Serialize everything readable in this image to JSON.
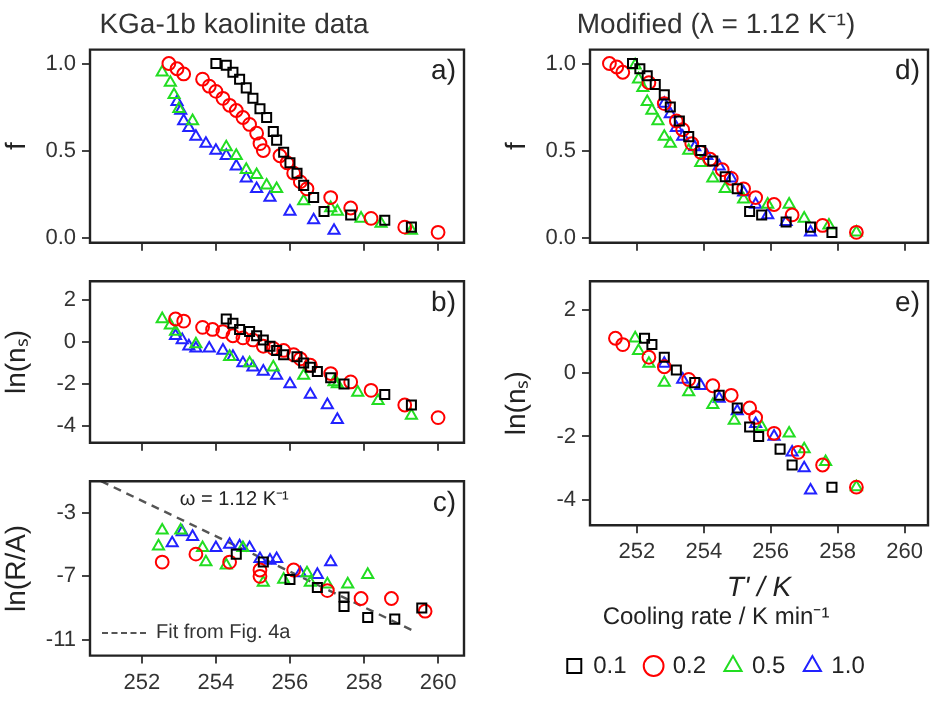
{
  "chart_data": [
    {
      "type": "scatter",
      "title": "KGa-1b kaolinite data",
      "ylabel": "f",
      "annotations": [
        "a)"
      ],
      "xlim": [
        250.6,
        260.7
      ],
      "xticks": [
        252,
        254,
        256,
        258,
        260
      ],
      "ylim": [
        -0.03,
        1.08
      ],
      "yticks": [
        {
          "value": 0,
          "label": "0.0"
        },
        {
          "value": 0.5,
          "label": "0.5"
        },
        {
          "value": 1,
          "label": "1.0"
        }
      ],
      "tick_labels": "y",
      "grid": false,
      "legend": false,
      "series": [
        {
          "color": "#000000",
          "marker": "square",
          "x": [
            254.0,
            254.28,
            254.46,
            254.64,
            254.82,
            255.0,
            255.19,
            255.37,
            255.55,
            255.64,
            255.83,
            256.0,
            256.19,
            256.37,
            256.64,
            256.92,
            257.64,
            258.56,
            259.28
          ],
          "values": [
            1.0,
            0.99,
            0.95,
            0.91,
            0.86,
            0.8,
            0.74,
            0.69,
            0.61,
            0.56,
            0.49,
            0.43,
            0.37,
            0.3,
            0.23,
            0.15,
            0.13,
            0.1,
            0.06
          ]
        },
        {
          "color": "#ff0000",
          "marker": "circle",
          "x": [
            252.73,
            252.95,
            253.13,
            253.64,
            253.82,
            254.0,
            254.19,
            254.37,
            254.55,
            254.73,
            254.91,
            255.1,
            255.19,
            255.28,
            255.73,
            255.92,
            256.1,
            256.28,
            256.46,
            257.1,
            257.64,
            258.19,
            259.1,
            260.0
          ],
          "values": [
            1.0,
            0.97,
            0.94,
            0.91,
            0.87,
            0.84,
            0.8,
            0.76,
            0.73,
            0.69,
            0.65,
            0.6,
            0.54,
            0.5,
            0.47,
            0.43,
            0.37,
            0.32,
            0.28,
            0.23,
            0.17,
            0.11,
            0.06,
            0.03
          ]
        },
        {
          "color": "#22dd22",
          "marker": "triangle",
          "x": [
            252.55,
            252.77,
            252.87,
            253.0,
            253.37,
            254.28,
            254.55,
            254.82,
            255.1,
            255.37,
            255.64,
            256.37,
            257.1,
            257.28,
            257.92,
            258.46,
            259.28
          ],
          "values": [
            0.95,
            0.89,
            0.82,
            0.74,
            0.67,
            0.52,
            0.47,
            0.39,
            0.36,
            0.3,
            0.28,
            0.21,
            0.17,
            0.15,
            0.11,
            0.08,
            0.04
          ]
        },
        {
          "color": "#2222ff",
          "marker": "triangle",
          "x": [
            252.95,
            253.05,
            253.13,
            253.27,
            253.46,
            253.73,
            254.0,
            254.28,
            254.55,
            254.82,
            255.1,
            255.46,
            256.0,
            256.64,
            257.19
          ],
          "values": [
            0.78,
            0.73,
            0.67,
            0.63,
            0.58,
            0.54,
            0.5,
            0.47,
            0.41,
            0.34,
            0.28,
            0.23,
            0.15,
            0.1,
            0.04
          ]
        }
      ]
    },
    {
      "type": "scatter",
      "ylabel": "ln(nₛ)",
      "annotations": [
        "b)"
      ],
      "xlim": [
        250.6,
        260.7
      ],
      "xticks": [
        252,
        254,
        256,
        258,
        260
      ],
      "ylim": [
        -4.8,
        2.9
      ],
      "yticks": [
        -4,
        -2,
        0,
        2
      ],
      "tick_labels": "y",
      "grid": false,
      "legend": false,
      "series": [
        {
          "color": "#000000",
          "marker": "square",
          "x": [
            254.28,
            254.46,
            254.64,
            254.91,
            255.1,
            255.28,
            255.46,
            255.64,
            255.83,
            256.19,
            256.37,
            256.55,
            256.74,
            257.1,
            257.46,
            258.56,
            259.28
          ],
          "values": [
            1.1,
            0.9,
            0.6,
            0.5,
            0.3,
            0.1,
            -0.2,
            -0.4,
            -0.6,
            -0.7,
            -1.0,
            -1.2,
            -1.4,
            -1.7,
            -2.0,
            -2.5,
            -3.0
          ]
        },
        {
          "color": "#ff0000",
          "marker": "circle",
          "x": [
            252.91,
            253.13,
            253.64,
            253.91,
            254.19,
            254.46,
            254.73,
            255.0,
            255.28,
            255.55,
            255.83,
            256.1,
            256.28,
            256.55,
            257.1,
            257.64,
            258.19,
            259.1,
            260.0
          ],
          "values": [
            1.1,
            1.0,
            0.7,
            0.6,
            0.5,
            0.3,
            0.2,
            0.1,
            -0.2,
            -0.3,
            -0.4,
            -0.6,
            -0.8,
            -1.1,
            -1.5,
            -1.9,
            -2.3,
            -3.0,
            -3.6
          ]
        },
        {
          "color": "#22dd22",
          "marker": "triangle",
          "x": [
            252.55,
            252.77,
            252.91,
            253.46,
            254.37,
            254.91,
            255.55,
            256.37,
            257.19,
            257.28,
            257.83,
            258.38,
            259.28
          ],
          "values": [
            1.1,
            0.8,
            0.5,
            -0.1,
            -0.7,
            -1.0,
            -1.2,
            -1.6,
            -1.9,
            -2.0,
            -2.4,
            -2.8,
            -3.5
          ]
        },
        {
          "color": "#2222ff",
          "marker": "triangle",
          "x": [
            252.91,
            253.09,
            253.27,
            253.46,
            253.82,
            254.19,
            254.46,
            254.73,
            255.0,
            255.28,
            255.64,
            256.0,
            256.55,
            257.01,
            257.28
          ],
          "values": [
            0.3,
            0.1,
            -0.2,
            -0.3,
            -0.3,
            -0.4,
            -0.7,
            -1.0,
            -1.2,
            -1.4,
            -1.6,
            -2.0,
            -2.5,
            -3.0,
            -3.7
          ]
        }
      ]
    },
    {
      "type": "scatter",
      "ylabel": "ln(R/A)",
      "annotations": [
        "ω = 1.12 K⁻¹",
        "c)"
      ],
      "xlim": [
        250.6,
        260.7
      ],
      "xticks": [
        252,
        254,
        256,
        258,
        260
      ],
      "ylim": [
        -12,
        -1
      ],
      "yticks": [
        -11,
        -7,
        -3
      ],
      "grid": false,
      "legend": "bottom left",
      "series": [
        {
          "color": "#000000",
          "marker": "square",
          "x": [
            254.55,
            255.28,
            256.0,
            256.74,
            257.46,
            257.46,
            258.1,
            258.83,
            259.56
          ],
          "values": [
            -5.6,
            -6.1,
            -7.2,
            -7.7,
            -8.3,
            -8.9,
            -9.6,
            -9.7,
            -9.0
          ]
        },
        {
          "color": "#ff0000",
          "marker": "circle",
          "x": [
            252.55,
            253.46,
            254.37,
            255.19,
            255.19,
            256.1,
            257.01,
            257.92,
            258.74,
            259.65
          ],
          "values": [
            -6.1,
            -5.6,
            -6.1,
            -6.6,
            -7.0,
            -6.6,
            -7.9,
            -8.4,
            -8.4,
            -9.2
          ]
        },
        {
          "color": "#22dd22",
          "marker": "triangle",
          "x": [
            252.55,
            252.45,
            253.05,
            253.64,
            253.73,
            254.28,
            254.73,
            255.28,
            255.83,
            256.46,
            256.55,
            257.01,
            257.56,
            258.1
          ],
          "values": [
            -4.1,
            -5.1,
            -4.1,
            -5.2,
            -6.1,
            -6.3,
            -5.2,
            -7.4,
            -7.2,
            -6.8,
            -7.4,
            -7.5,
            -7.5,
            -6.9
          ]
        },
        {
          "color": "#2222ff",
          "marker": "triangle",
          "x": [
            252.82,
            253.09,
            253.37,
            254.0,
            254.37,
            254.64,
            254.91,
            255.19,
            255.46,
            255.64,
            256.28,
            256.74,
            257.1
          ],
          "values": [
            -4.9,
            -4.2,
            -4.5,
            -5.2,
            -5.0,
            -5.1,
            -5.2,
            -5.9,
            -6.0,
            -5.9,
            -6.8,
            -6.9,
            -6.1
          ]
        },
        {
          "type": "line",
          "name": "Fit from Fig. 4a",
          "color": "#555555",
          "marker": "none",
          "line_style": "dashed",
          "x": [
            250.9,
            259.3
          ],
          "values": [
            -1.0,
            -10.4
          ]
        }
      ]
    },
    {
      "type": "scatter",
      "title": "Modified (λ = 1.12 K⁻¹)",
      "ylabel": "f",
      "annotations": [
        "d)"
      ],
      "xlim": [
        250.6,
        260.7
      ],
      "xticks": [
        252,
        254,
        256,
        258,
        260
      ],
      "ylim": [
        -0.03,
        1.08
      ],
      "yticks": [
        {
          "value": 0,
          "label": "0.0"
        },
        {
          "value": 0.5,
          "label": "0.5"
        },
        {
          "value": 1,
          "label": "1.0"
        }
      ],
      "tick_labels": "y",
      "grid": false,
      "legend": false,
      "series": [
        {
          "color": "#000000",
          "marker": "square",
          "x": [
            251.87,
            252.09,
            252.31,
            252.55,
            252.82,
            253.0,
            253.27,
            253.55,
            253.91,
            254.27,
            254.64,
            255.0,
            255.37,
            255.73,
            256.46,
            257.19,
            257.83
          ],
          "values": [
            1.0,
            0.97,
            0.93,
            0.88,
            0.82,
            0.75,
            0.67,
            0.58,
            0.5,
            0.44,
            0.35,
            0.28,
            0.15,
            0.13,
            0.09,
            0.06,
            0.03
          ]
        },
        {
          "color": "#ff0000",
          "marker": "circle",
          "x": [
            251.18,
            251.4,
            251.58,
            252.36,
            252.82,
            253.18,
            253.37,
            253.64,
            253.91,
            254.19,
            254.55,
            254.82,
            255.19,
            255.55,
            256.1,
            256.64,
            257.55,
            258.56
          ],
          "values": [
            1.0,
            0.98,
            0.95,
            0.89,
            0.77,
            0.67,
            0.62,
            0.54,
            0.49,
            0.45,
            0.39,
            0.34,
            0.28,
            0.23,
            0.19,
            0.13,
            0.07,
            0.03
          ]
        },
        {
          "color": "#22dd22",
          "marker": "triangle",
          "x": [
            251.95,
            252.05,
            252.18,
            252.31,
            252.45,
            252.63,
            252.82,
            253.0,
            253.55,
            253.91,
            254.27,
            254.64,
            255.19,
            255.91,
            256.55,
            257.0,
            257.74,
            258.56
          ],
          "values": [
            0.99,
            0.91,
            0.86,
            0.78,
            0.73,
            0.67,
            0.58,
            0.54,
            0.5,
            0.43,
            0.34,
            0.28,
            0.22,
            0.19,
            0.19,
            0.11,
            0.07,
            0.03
          ]
        },
        {
          "color": "#2222ff",
          "marker": "triangle",
          "x": [
            252.82,
            253.0,
            253.18,
            253.37,
            253.73,
            254.09,
            254.46,
            254.82,
            255.19,
            255.55,
            255.91,
            256.46,
            257.19
          ],
          "values": [
            0.77,
            0.71,
            0.63,
            0.58,
            0.52,
            0.47,
            0.41,
            0.34,
            0.26,
            0.19,
            0.13,
            0.09,
            0.03
          ]
        }
      ]
    },
    {
      "type": "scatter",
      "xlabel": "T' / K",
      "ylabel": "ln(nₛ)",
      "legend_title": "Cooling rate / K min⁻¹",
      "annotations": [
        "e)"
      ],
      "xlim": [
        250.6,
        260.7
      ],
      "xticks": [
        252,
        254,
        256,
        258,
        260
      ],
      "ylim": [
        -4.8,
        2.9
      ],
      "yticks": [
        -4,
        -2,
        0,
        2
      ],
      "grid": false,
      "legend": "bottom",
      "series": [
        {
          "name": "0.1",
          "color": "#000000",
          "marker": "square",
          "x": [
            252.23,
            252.45,
            252.82,
            253.18,
            253.73,
            254.46,
            255.0,
            255.37,
            255.64,
            256.28,
            256.64,
            257.83
          ],
          "values": [
            1.1,
            0.9,
            0.5,
            0.1,
            -0.3,
            -0.7,
            -1.1,
            -1.7,
            -2.0,
            -2.4,
            -2.9,
            -3.6
          ]
        },
        {
          "name": "0.2",
          "color": "#ff0000",
          "marker": "circle",
          "x": [
            251.36,
            251.58,
            252.36,
            252.82,
            253.55,
            254.27,
            254.82,
            255.37,
            255.55,
            256.1,
            256.82,
            257.55,
            258.56
          ],
          "values": [
            1.1,
            0.9,
            0.5,
            0.2,
            -0.2,
            -0.4,
            -0.7,
            -1.1,
            -1.4,
            -1.9,
            -2.5,
            -2.9,
            -3.6
          ]
        },
        {
          "name": "0.5",
          "color": "#22dd22",
          "marker": "triangle",
          "x": [
            251.95,
            252.05,
            252.36,
            252.82,
            253.55,
            254.27,
            254.91,
            255.73,
            256.55,
            257.0,
            257.64,
            258.56
          ],
          "values": [
            1.1,
            0.7,
            0.3,
            -0.3,
            -0.6,
            -1.0,
            -1.5,
            -1.7,
            -1.9,
            -2.4,
            -2.8,
            -3.6
          ]
        },
        {
          "name": "1.0",
          "color": "#2222ff",
          "marker": "triangle",
          "x": [
            252.82,
            253.37,
            253.91,
            254.46,
            255.0,
            255.55,
            256.1,
            256.64,
            257.0,
            257.19
          ],
          "values": [
            0.3,
            -0.2,
            -0.4,
            -0.8,
            -1.2,
            -1.6,
            -2.0,
            -2.5,
            -3.0,
            -3.7
          ]
        }
      ]
    }
  ]
}
